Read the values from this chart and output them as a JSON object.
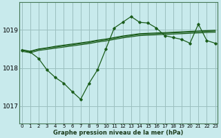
{
  "bg_color": "#c8eaec",
  "grid_color": "#9bbfbf",
  "line_color": "#1a5c1a",
  "title": "Graphe pression niveau de la mer (hPa)",
  "yticks": [
    1017,
    1018,
    1019
  ],
  "ylim": [
    1016.55,
    1019.72
  ],
  "xlim": [
    -0.3,
    23.3
  ],
  "xticks": [
    0,
    1,
    2,
    3,
    4,
    5,
    6,
    7,
    8,
    9,
    10,
    11,
    12,
    13,
    14,
    15,
    16,
    17,
    18,
    19,
    20,
    21,
    22,
    23
  ],
  "env1_y": [
    1018.48,
    1018.44,
    1018.5,
    1018.53,
    1018.57,
    1018.6,
    1018.63,
    1018.66,
    1018.69,
    1018.73,
    1018.76,
    1018.8,
    1018.84,
    1018.87,
    1018.9,
    1018.91,
    1018.92,
    1018.93,
    1018.94,
    1018.95,
    1018.96,
    1018.97,
    1018.98,
    1018.99
  ],
  "env2_y": [
    1018.47,
    1018.43,
    1018.49,
    1018.52,
    1018.55,
    1018.58,
    1018.61,
    1018.64,
    1018.67,
    1018.71,
    1018.74,
    1018.78,
    1018.82,
    1018.85,
    1018.88,
    1018.89,
    1018.9,
    1018.91,
    1018.92,
    1018.93,
    1018.94,
    1018.95,
    1018.96,
    1018.97
  ],
  "env3_y": [
    1018.44,
    1018.4,
    1018.46,
    1018.49,
    1018.52,
    1018.55,
    1018.58,
    1018.61,
    1018.64,
    1018.68,
    1018.71,
    1018.75,
    1018.79,
    1018.82,
    1018.85,
    1018.86,
    1018.87,
    1018.88,
    1018.89,
    1018.9,
    1018.91,
    1018.92,
    1018.93,
    1018.94
  ],
  "main_y": [
    1018.47,
    1018.42,
    1018.25,
    1017.95,
    1017.75,
    1017.6,
    1017.38,
    1017.18,
    1017.6,
    1017.95,
    1018.5,
    1019.05,
    1019.2,
    1019.35,
    1019.2,
    1019.18,
    1019.05,
    1018.85,
    1018.8,
    1018.75,
    1018.65,
    1019.15,
    1018.72,
    1018.65
  ],
  "xtick_fontsize": 5.0,
  "ytick_fontsize": 6.5,
  "xlabel_fontsize": 6.0
}
